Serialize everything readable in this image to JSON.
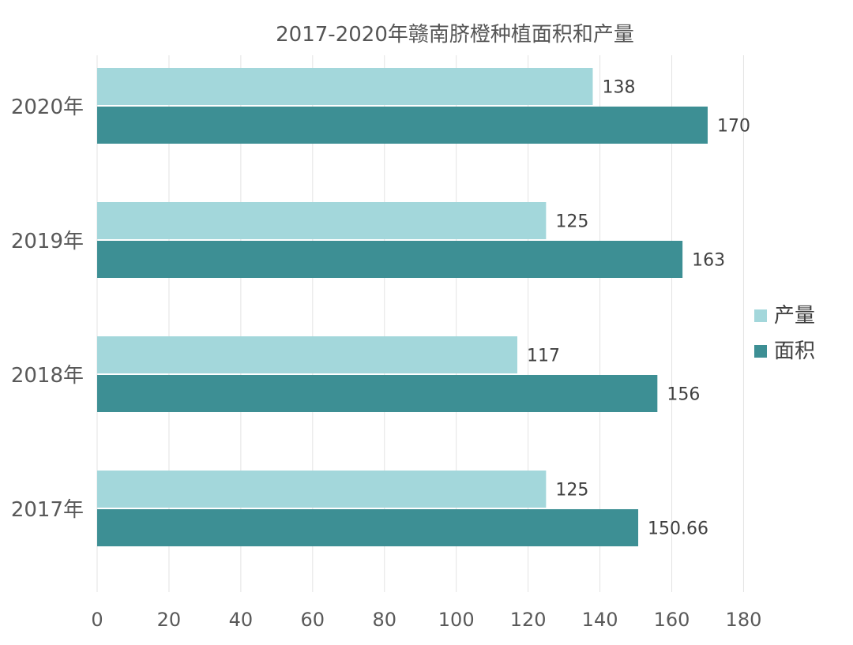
{
  "chart_data": {
    "type": "bar",
    "orientation": "horizontal",
    "title": "2017-2020年赣南脐橙种植面积和产量",
    "categories": [
      "2020年",
      "2019年",
      "2018年",
      "2017年"
    ],
    "series": [
      {
        "name": "产量",
        "values": [
          138,
          125,
          117,
          125
        ],
        "labels": [
          "138",
          "125",
          "117",
          "125"
        ],
        "color": "#a3d7db"
      },
      {
        "name": "面积",
        "values": [
          170,
          163,
          156,
          150.66
        ],
        "labels": [
          "170",
          "163",
          "156",
          "150.66"
        ],
        "color": "#3d8f94"
      }
    ],
    "xlim": [
      0,
      180
    ],
    "x_ticks": [
      "0",
      "20",
      "40",
      "60",
      "80",
      "100",
      "120",
      "140",
      "160",
      "180"
    ],
    "grid": true,
    "legend_position": "right"
  }
}
